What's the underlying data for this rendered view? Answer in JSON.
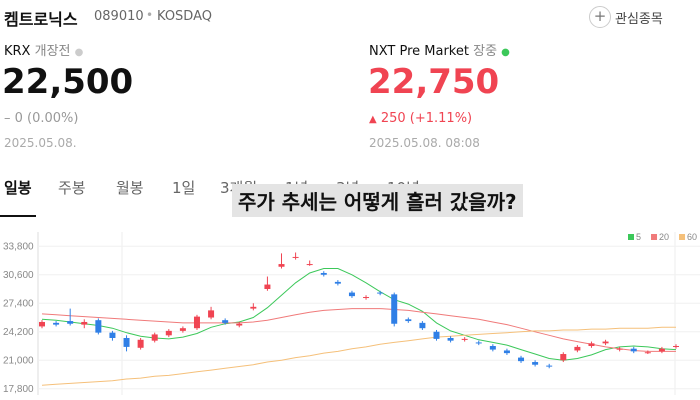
{
  "header": {
    "name": "켐트로닉스",
    "code": "089010",
    "market": "KOSDAQ",
    "watch": "관심종목"
  },
  "krx": {
    "label": "KRX",
    "status": "개장전",
    "price": "22,500",
    "change": "0 (0.00%)",
    "date": "2025.05.08."
  },
  "nxt": {
    "label": "NXT Pre Market",
    "status": "장중",
    "price": "22,750",
    "change": "250 (+1.11%)",
    "date": "2025.05.08. 08:08"
  },
  "tabs": [
    "일봉",
    "주봉",
    "월봉",
    "1일",
    "3개월",
    "1년",
    "3년",
    "10년"
  ],
  "overlay": "주가 추세는 어떻게 흘러 갔을까?",
  "chart_data": {
    "type": "candlestick",
    "open": [
      24800,
      25200,
      25400,
      25000,
      25500,
      24100,
      23500,
      22400,
      23200,
      23800,
      24300,
      24600,
      25800,
      25500,
      24900,
      26800,
      29000,
      31500,
      32500,
      31800,
      30800,
      29800,
      28600,
      28000,
      28600,
      28400,
      25600,
      25200,
      24200,
      23500,
      23300,
      23000,
      22600,
      22100,
      21300,
      20800,
      20400,
      21000,
      22100,
      22600,
      22900,
      22200,
      22300,
      21900,
      22000,
      22500
    ],
    "high": [
      25500,
      25400,
      26800,
      25600,
      25700,
      24300,
      23800,
      23500,
      24100,
      24500,
      24800,
      26100,
      27000,
      25700,
      25300,
      27400,
      30400,
      33000,
      33100,
      32200,
      31000,
      30000,
      28800,
      28300,
      28800,
      28600,
      25800,
      25400,
      24400,
      23700,
      23600,
      23200,
      22800,
      22300,
      21500,
      21000,
      20600,
      21900,
      22700,
      23100,
      23300,
      22500,
      22500,
      22100,
      22500,
      22800
    ],
    "low": [
      24600,
      24800,
      24900,
      24600,
      23900,
      23200,
      22000,
      22200,
      23000,
      23600,
      24100,
      24400,
      25600,
      25000,
      24700,
      26600,
      28800,
      31300,
      32300,
      31600,
      30400,
      29400,
      28000,
      27800,
      28300,
      24800,
      25200,
      24400,
      23200,
      23000,
      23100,
      22700,
      22000,
      21600,
      20700,
      20300,
      20100,
      20800,
      21900,
      22400,
      22700,
      22000,
      21800,
      21700,
      21800,
      22300
    ],
    "close": [
      25300,
      25000,
      25100,
      25300,
      24100,
      23500,
      22500,
      23300,
      23900,
      24300,
      24600,
      25900,
      26600,
      25200,
      25100,
      27000,
      29500,
      31800,
      32600,
      31800,
      30600,
      29600,
      28200,
      28100,
      28500,
      25100,
      25400,
      24600,
      23400,
      23200,
      23400,
      22900,
      22200,
      21800,
      20900,
      20500,
      20300,
      21700,
      22500,
      22900,
      23100,
      22300,
      22000,
      21900,
      22300,
      22600
    ],
    "up_color": "#f04452",
    "down_color": "#2f7fe6",
    "series": [
      {
        "name": "5",
        "color": "#3cc85a",
        "values": [
          25600,
          25500,
          25300,
          25100,
          24900,
          24600,
          24100,
          23700,
          23500,
          23400,
          23600,
          24000,
          24700,
          25100,
          25300,
          25800,
          26900,
          28300,
          29700,
          30800,
          31300,
          31300,
          30600,
          29700,
          28700,
          27800,
          27300,
          26500,
          25200,
          24300,
          23800,
          23300,
          23000,
          22700,
          22200,
          21700,
          21200,
          21000,
          21200,
          21600,
          22200,
          22500,
          22600,
          22500,
          22300,
          22200
        ]
      },
      {
        "name": "20",
        "color": "#f07a7a",
        "values": [
          26200,
          26100,
          26000,
          25900,
          25800,
          25700,
          25600,
          25500,
          25400,
          25300,
          25200,
          25200,
          25200,
          25200,
          25200,
          25300,
          25500,
          25800,
          26100,
          26400,
          26600,
          26700,
          26800,
          26800,
          26800,
          26700,
          26600,
          26400,
          26200,
          26000,
          25800,
          25600,
          25300,
          25000,
          24600,
          24200,
          23800,
          23400,
          23100,
          22800,
          22500,
          22300,
          22100,
          22000,
          22000,
          22000
        ]
      },
      {
        "name": "60",
        "color": "#f5c07a",
        "values": [
          18200,
          18300,
          18400,
          18500,
          18600,
          18700,
          18900,
          19000,
          19200,
          19300,
          19500,
          19700,
          19900,
          20100,
          20300,
          20500,
          20800,
          21000,
          21300,
          21500,
          21800,
          22000,
          22300,
          22500,
          22800,
          23000,
          23200,
          23400,
          23600,
          23700,
          23800,
          23900,
          24000,
          24100,
          24200,
          24300,
          24300,
          24400,
          24400,
          24500,
          24500,
          24600,
          24600,
          24600,
          24700,
          24700
        ]
      }
    ],
    "ylim": [
      17100,
      35400
    ],
    "yticks": [
      {
        "value": 17800,
        "label": "17,800"
      },
      {
        "value": 21000,
        "label": "21,000"
      },
      {
        "value": 24200,
        "label": "24,200"
      },
      {
        "value": 27400,
        "label": "27,400"
      },
      {
        "value": 30600,
        "label": "30,600"
      },
      {
        "value": 33800,
        "label": "33,800"
      }
    ],
    "grid": true,
    "legend": "top-right"
  }
}
